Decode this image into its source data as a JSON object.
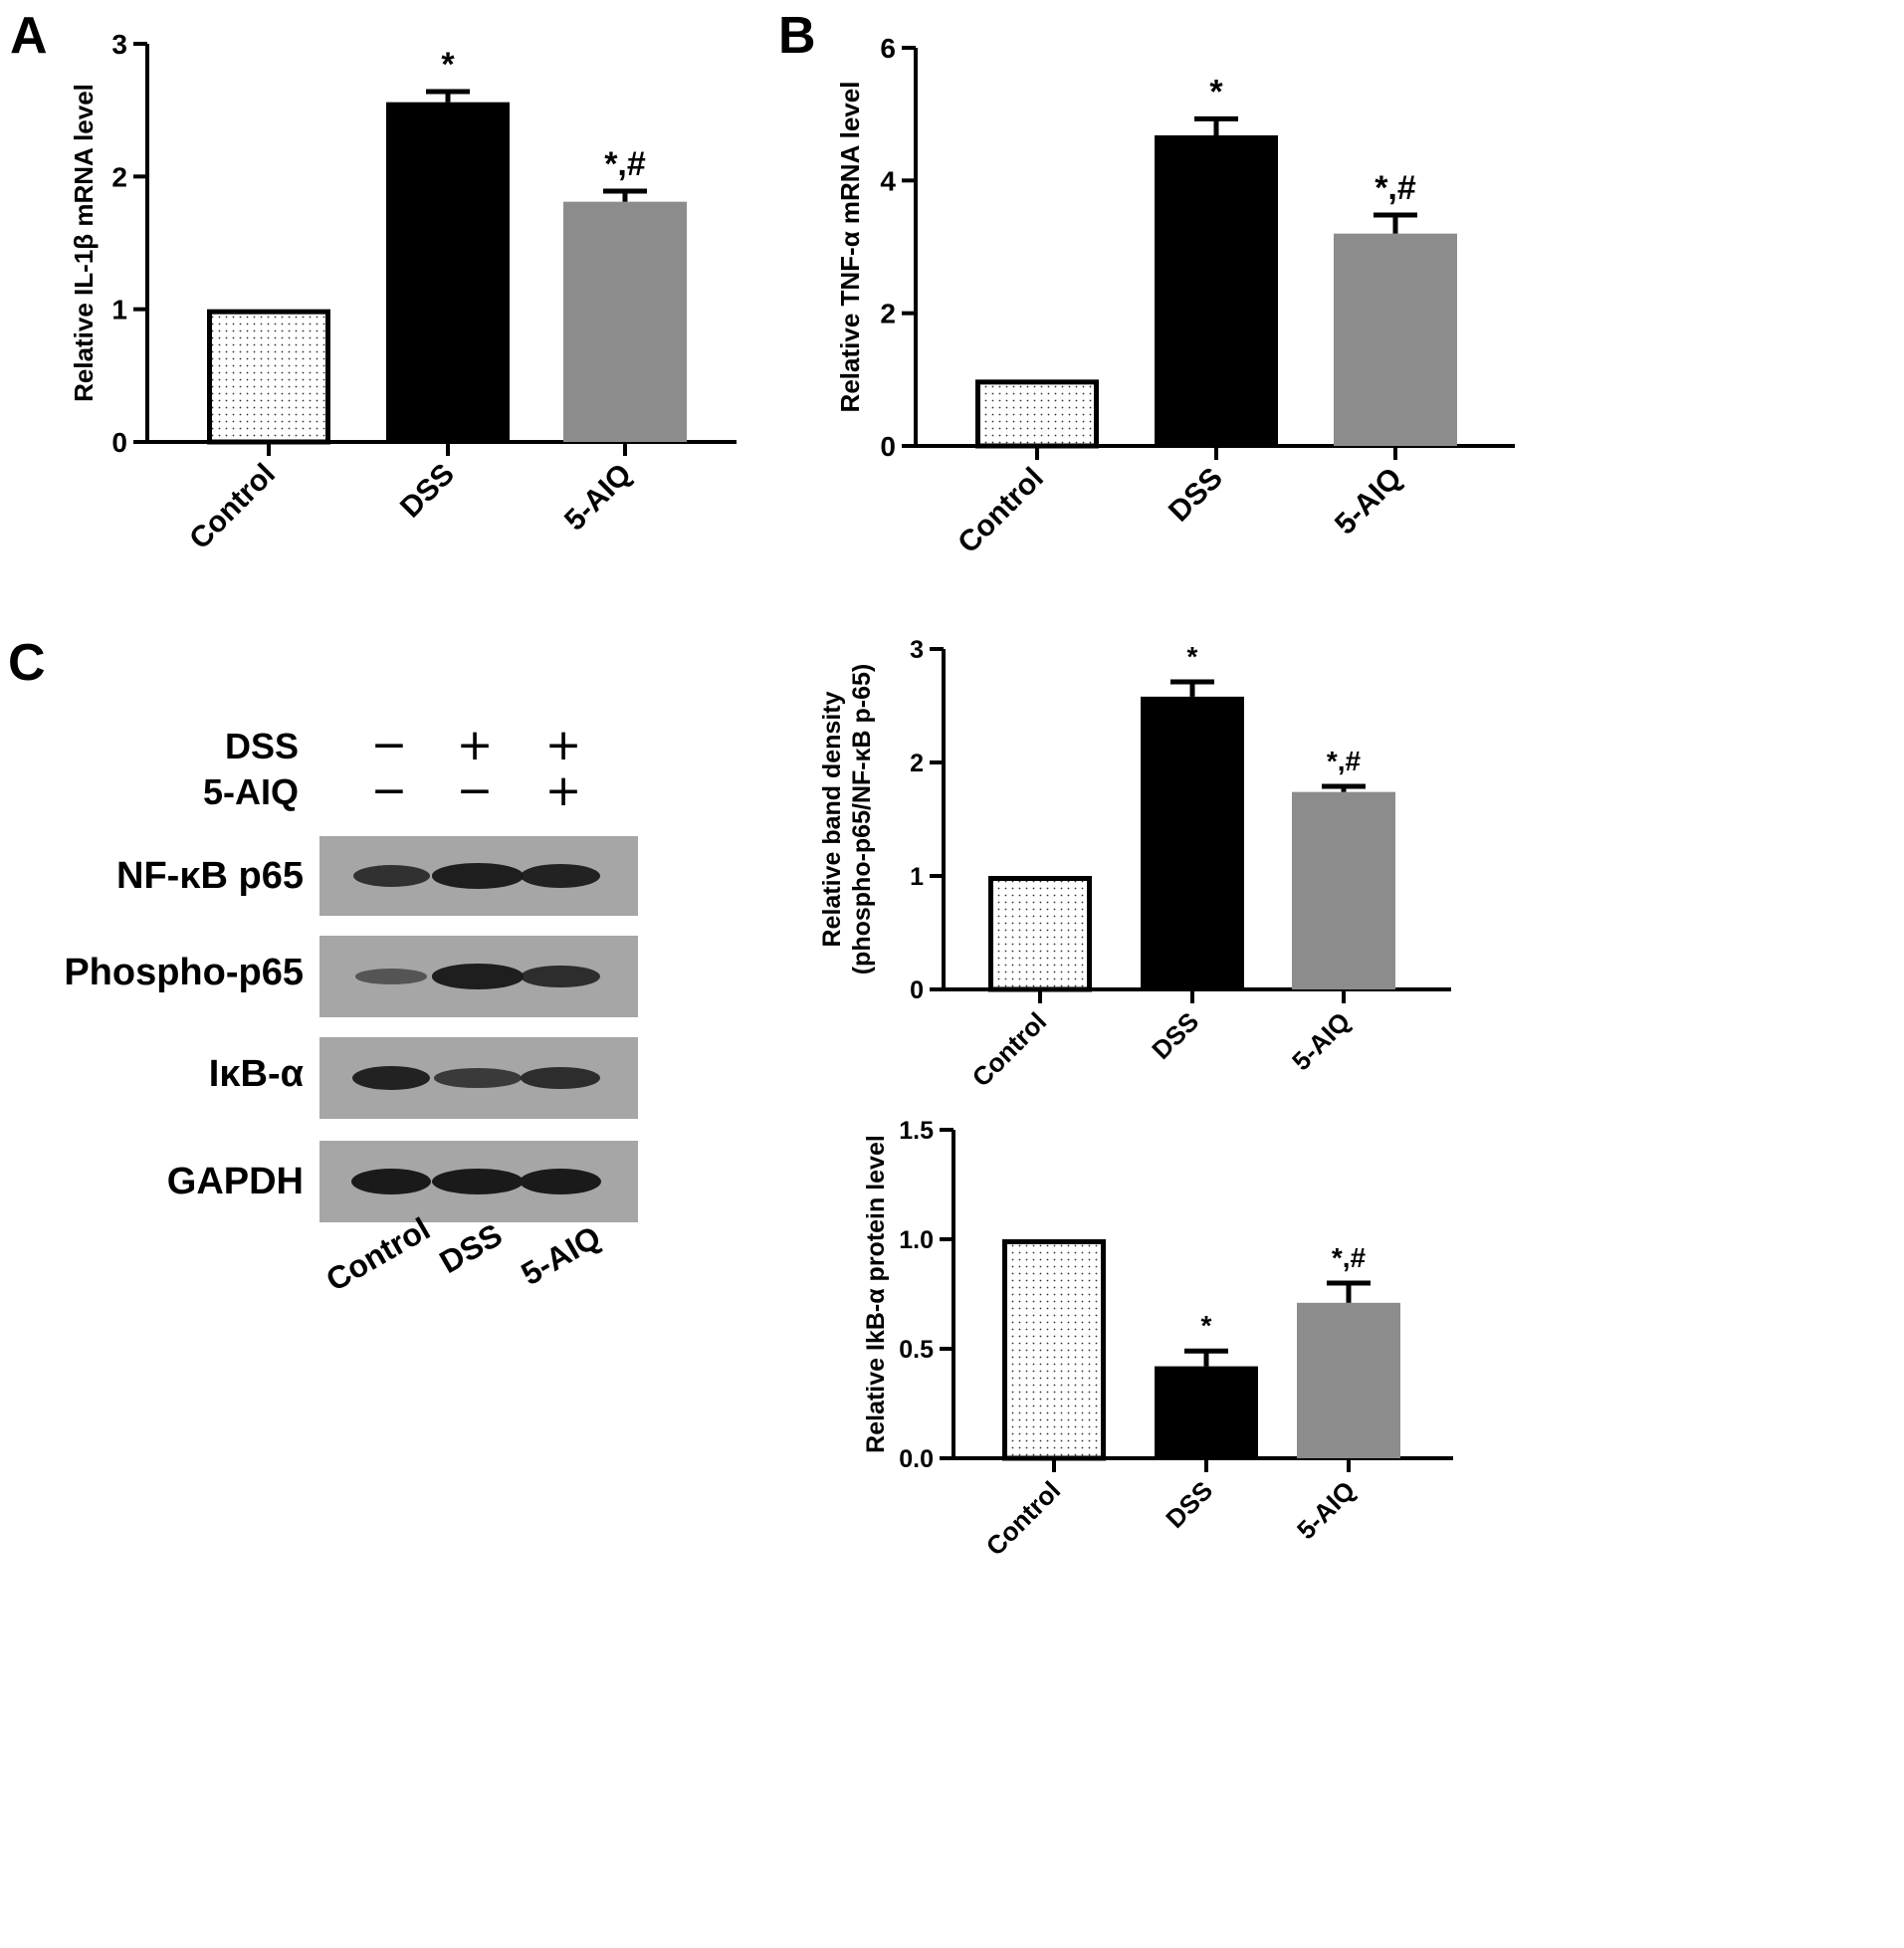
{
  "panels": {
    "a": "A",
    "b": "B",
    "c": "C"
  },
  "colors": {
    "control_fill": "#ffffff",
    "dss_fill": "#000000",
    "aiq_fill": "#8c8c8c",
    "blot_bg": "#a6a6a6",
    "band": "#1a1a1a"
  },
  "chart_data": [
    {
      "id": "A",
      "type": "bar",
      "categories": [
        "Control",
        "DSS",
        "5-AIQ"
      ],
      "values": [
        1.0,
        2.56,
        1.81
      ],
      "errors": [
        0.0,
        0.08,
        0.08
      ],
      "annotations": [
        "",
        "*",
        "*,#"
      ],
      "ylabel": "Relative IL-1β mRNA level",
      "ylim": [
        0,
        3
      ],
      "yticks": [
        "0",
        "1",
        "2",
        "3"
      ],
      "grid": false
    },
    {
      "id": "B",
      "type": "bar",
      "categories": [
        "Control",
        "DSS",
        "5-AIQ"
      ],
      "values": [
        1.0,
        4.68,
        3.2
      ],
      "errors": [
        0.0,
        0.25,
        0.28
      ],
      "annotations": [
        "",
        "*",
        "*,#"
      ],
      "ylabel": "Relative TNF-α mRNA level",
      "ylim": [
        0,
        6
      ],
      "yticks": [
        "0",
        "2",
        "4",
        "6"
      ],
      "grid": false
    },
    {
      "id": "C-phospho",
      "type": "bar",
      "categories": [
        "Control",
        "DSS",
        "5-AIQ"
      ],
      "values": [
        1.0,
        2.58,
        1.74
      ],
      "errors": [
        0.0,
        0.13,
        0.05
      ],
      "annotations": [
        "",
        "*",
        "*,#"
      ],
      "ylabel": "Relative band density",
      "ylabel2": "(phospho-p65/NF-κB p-65)",
      "ylim": [
        0,
        3
      ],
      "yticks": [
        "0",
        "1",
        "2",
        "3"
      ],
      "grid": false
    },
    {
      "id": "C-ikb",
      "type": "bar",
      "categories": [
        "Control",
        "DSS",
        "5-AIQ"
      ],
      "values": [
        1.0,
        0.42,
        0.71
      ],
      "errors": [
        0.0,
        0.07,
        0.09
      ],
      "annotations": [
        "",
        "*",
        "*,#"
      ],
      "ylabel": "Relative IkB-α  protein level",
      "ylim": [
        0,
        1.5
      ],
      "yticks": [
        "0.0",
        "0.5",
        "1.0",
        "1.5"
      ],
      "grid": false
    }
  ],
  "blot": {
    "treatments": [
      {
        "label": "DSS",
        "signs": [
          "−",
          "+",
          "+"
        ]
      },
      {
        "label": "5-AIQ",
        "signs": [
          "−",
          "−",
          "+"
        ]
      }
    ],
    "rows": [
      {
        "label": "NF-κB p65",
        "intensity": [
          0.75,
          0.95,
          0.9
        ]
      },
      {
        "label": "Phospho-p65",
        "intensity": [
          0.35,
          0.95,
          0.8
        ]
      },
      {
        "label": "IκB-α",
        "intensity": [
          0.9,
          0.65,
          0.8
        ]
      },
      {
        "label": "GAPDH",
        "intensity": [
          1.0,
          1.0,
          1.0
        ]
      }
    ],
    "lanes": [
      "Control",
      "DSS",
      "5-AIQ"
    ]
  }
}
